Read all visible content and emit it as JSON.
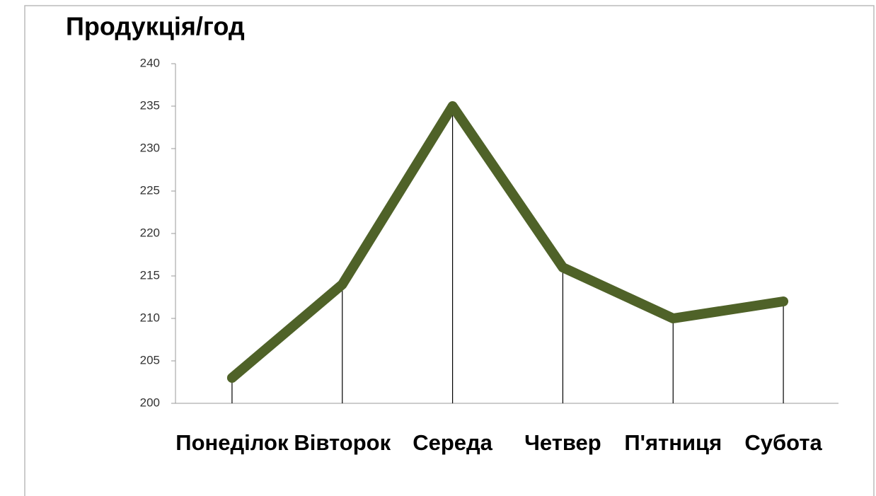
{
  "chart_data": {
    "type": "line",
    "title": "Продукція/год",
    "categories": [
      "Понеділок",
      "Вівторок",
      "Середа",
      "Четвер",
      "П'ятниця",
      "Субота"
    ],
    "series": [
      {
        "color": "#4f6228",
        "values": [
          203,
          214,
          235,
          216,
          210,
          212
        ]
      }
    ],
    "ylim": [
      200,
      240
    ],
    "yticks": [
      200,
      205,
      210,
      215,
      220,
      225,
      230,
      235,
      240
    ],
    "drop_lines": true
  }
}
